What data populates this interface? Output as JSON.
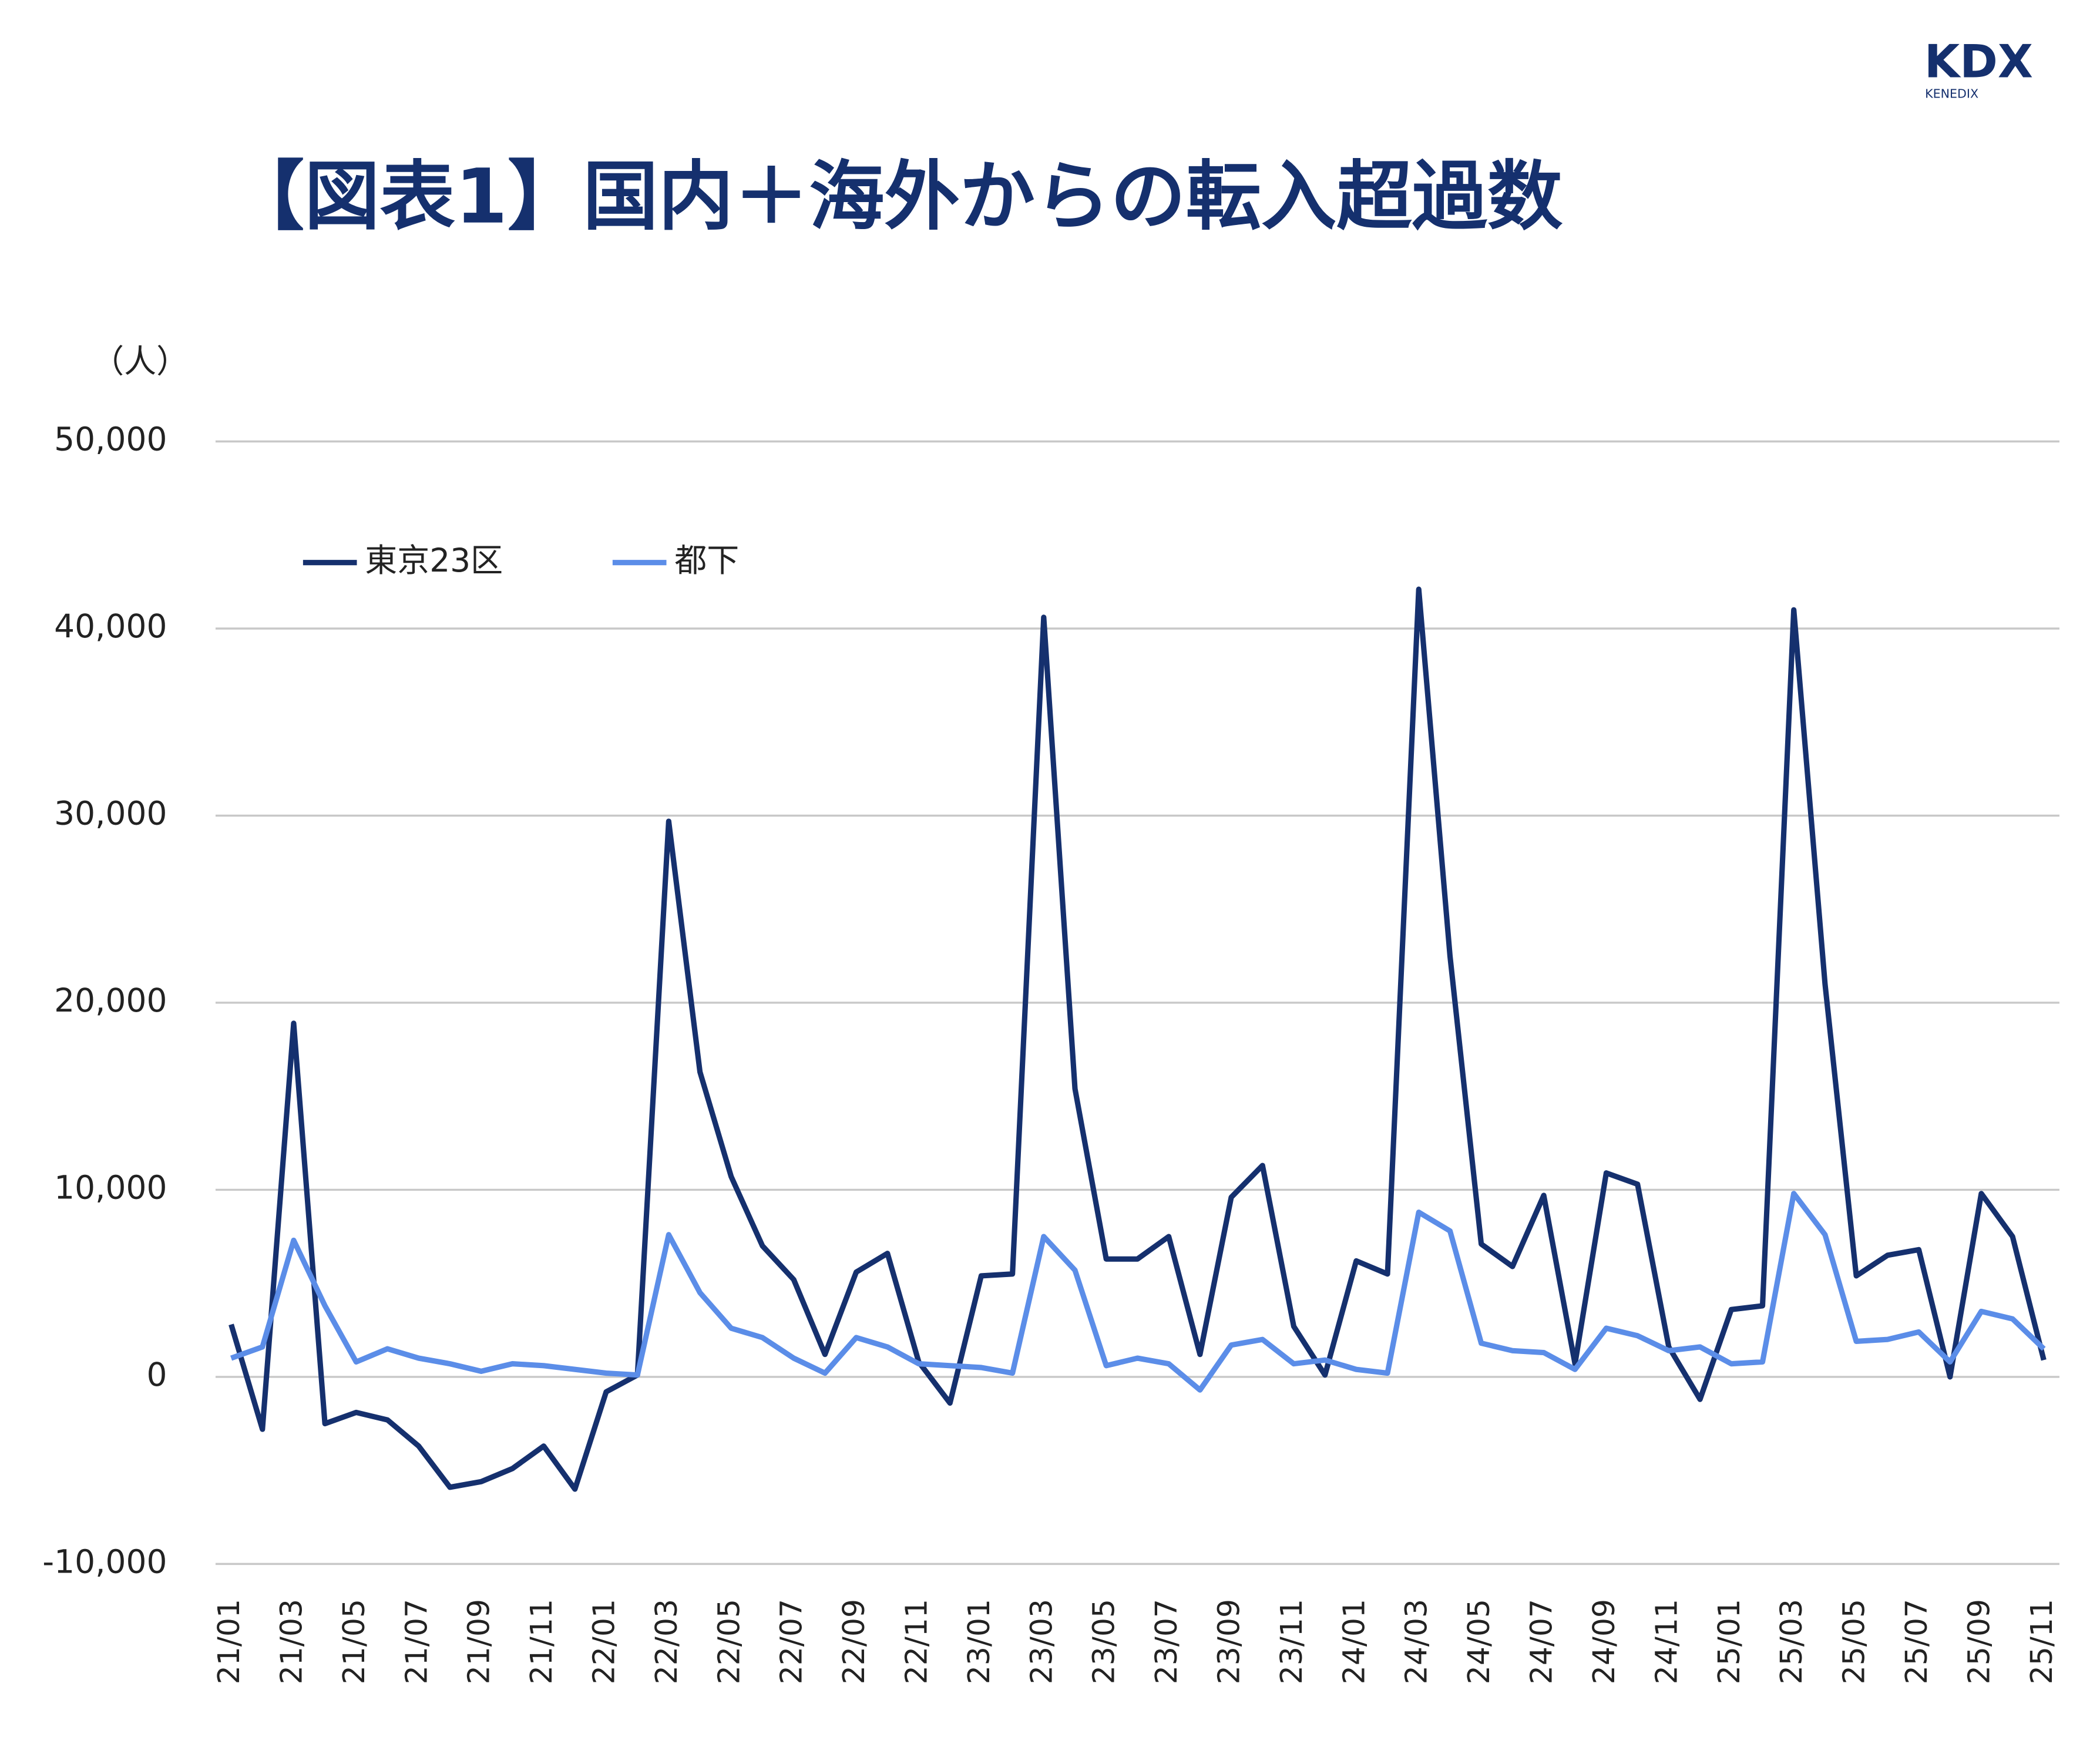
{
  "logo": {
    "text": "KDX",
    "subtext": "KENEDIX"
  },
  "chart_data": {
    "type": "line",
    "title": "【図表1】国内＋海外からの転入超過数",
    "y_label": "（人）",
    "categories": [
      "21/01",
      null,
      "21/03",
      null,
      "21/05",
      null,
      "21/07",
      null,
      "21/09",
      null,
      "21/11",
      null,
      "22/01",
      null,
      "22/03",
      null,
      "22/05",
      null,
      "22/07",
      null,
      "22/09",
      null,
      "22/11",
      null,
      "23/01",
      null,
      "23/03",
      null,
      "23/05",
      null,
      "23/07",
      null,
      "23/09",
      null,
      "23/11",
      null,
      "24/01",
      null,
      "24/03",
      null,
      "24/05",
      null,
      "24/07",
      null,
      "24/09",
      null,
      "24/11",
      null,
      "25/01",
      null,
      "25/03",
      null,
      "25/05",
      null,
      "25/07",
      null,
      "25/09",
      null,
      "25/11"
    ],
    "series": [
      {
        "name": "東京23区",
        "color": "#15306e",
        "values": [
          2800,
          -2800,
          18900,
          -2500,
          -1900,
          -2300,
          -3700,
          -5900,
          -5600,
          -4900,
          -3700,
          -6000,
          -800,
          100,
          29700,
          16300,
          10700,
          7000,
          5200,
          1200,
          5600,
          6600,
          800,
          -1400,
          5400,
          5500,
          40600,
          15400,
          6300,
          6300,
          7500,
          1200,
          9600,
          11300,
          2700,
          100,
          6200,
          5500,
          42100,
          22500,
          7100,
          5900,
          9700,
          700,
          10900,
          10300,
          1600,
          -1200,
          3600,
          3800,
          41000,
          21000,
          5400,
          6500,
          6800,
          0,
          9800,
          7500,
          900
        ]
      },
      {
        "name": "都下",
        "color": "#5b8de8",
        "values": [
          1000,
          1600,
          7300,
          3800,
          800,
          1500,
          1000,
          700,
          300,
          700,
          600,
          400,
          200,
          100,
          7600,
          4500,
          2600,
          2100,
          1000,
          200,
          2100,
          1600,
          700,
          600,
          500,
          200,
          7500,
          5700,
          600,
          1000,
          700,
          -700,
          1700,
          2000,
          700,
          900,
          400,
          200,
          8800,
          7800,
          1800,
          1400,
          1300,
          400,
          2600,
          2200,
          1400,
          1600,
          700,
          800,
          9800,
          7600,
          1900,
          2000,
          2400,
          800,
          3500,
          3100,
          1500
        ]
      }
    ],
    "ylim": [
      -10000,
      50000
    ],
    "yticks": [
      {
        "value": -10000,
        "label": "-10,000"
      },
      0,
      {
        "value": 10000,
        "label": "10,000"
      },
      {
        "value": 20000,
        "label": "20,000"
      },
      {
        "value": 30000,
        "label": "30,000"
      },
      {
        "value": 40000,
        "label": "40,000"
      },
      {
        "value": 50000,
        "label": "50,000"
      }
    ],
    "grid": true,
    "legend": "top-left"
  }
}
